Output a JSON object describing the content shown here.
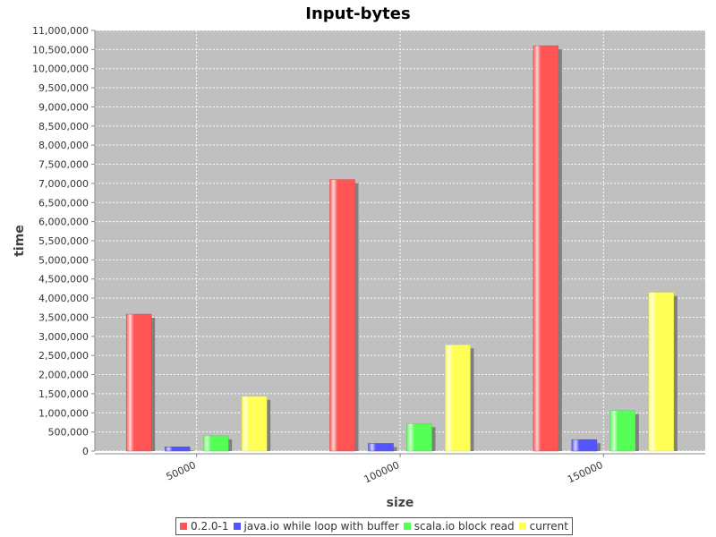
{
  "chart_data": {
    "type": "bar",
    "title": "Input-bytes",
    "xlabel": "size",
    "ylabel": "time",
    "categories": [
      "50000",
      "100000",
      "150000"
    ],
    "ylim": [
      0,
      11000000
    ],
    "ytick_step": 500000,
    "grid": true,
    "legend_position": "bottom",
    "series": [
      {
        "name": "0.2.0-1",
        "color": "#ff5555",
        "values": [
          3580000,
          7100000,
          10600000
        ]
      },
      {
        "name": "java.io while loop with buffer",
        "color": "#5555ff",
        "values": [
          110000,
          200000,
          300000
        ]
      },
      {
        "name": "scala.io block read",
        "color": "#55ff55",
        "values": [
          400000,
          720000,
          1060000
        ]
      },
      {
        "name": "current",
        "color": "#ffff55",
        "values": [
          1430000,
          2780000,
          4150000
        ]
      }
    ]
  }
}
